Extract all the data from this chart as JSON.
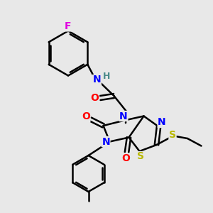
{
  "bg_color": "#e8e8e8",
  "atom_colors": {
    "C": "#000000",
    "N": "#0000ff",
    "O": "#ff0000",
    "S": "#b8b800",
    "F": "#e000e0",
    "H": "#4a8a8a"
  },
  "bond_color": "#000000",
  "bond_width": 1.8
}
